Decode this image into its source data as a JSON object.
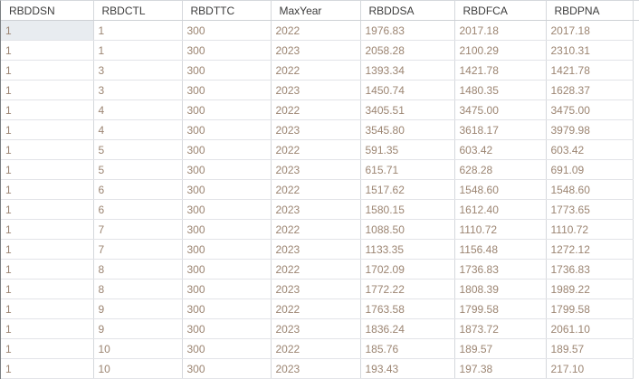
{
  "app": {
    "name": "query-results-grid"
  },
  "colors": {
    "background": "#ffffff",
    "header_text": "#3c3c3c",
    "cell_text": "#9c8572",
    "grid_vertical_line": "#d5d8dc",
    "grid_horizontal_line": "#e2e4e8",
    "header_bottom_border": "#ced1d5",
    "outer_left_border": "#7b7f82",
    "selected_cell_background": "#e8ecf0"
  },
  "table": {
    "columns": [
      "RBDDSN",
      "RBDCTL",
      "RBDTTC",
      "MaxYear",
      "RBDDSA",
      "RBDFCA",
      "RBDPNA"
    ],
    "selected_cell": {
      "row": 0,
      "col": 0
    },
    "rows": [
      [
        "1",
        "1",
        "300",
        "2022",
        "1976.83",
        "2017.18",
        "2017.18"
      ],
      [
        "1",
        "1",
        "300",
        "2023",
        "2058.28",
        "2100.29",
        "2310.31"
      ],
      [
        "1",
        "3",
        "300",
        "2022",
        "1393.34",
        "1421.78",
        "1421.78"
      ],
      [
        "1",
        "3",
        "300",
        "2023",
        "1450.74",
        "1480.35",
        "1628.37"
      ],
      [
        "1",
        "4",
        "300",
        "2022",
        "3405.51",
        "3475.00",
        "3475.00"
      ],
      [
        "1",
        "4",
        "300",
        "2023",
        "3545.80",
        "3618.17",
        "3979.98"
      ],
      [
        "1",
        "5",
        "300",
        "2022",
        "591.35",
        "603.42",
        "603.42"
      ],
      [
        "1",
        "5",
        "300",
        "2023",
        "615.71",
        "628.28",
        "691.09"
      ],
      [
        "1",
        "6",
        "300",
        "2022",
        "1517.62",
        "1548.60",
        "1548.60"
      ],
      [
        "1",
        "6",
        "300",
        "2023",
        "1580.15",
        "1612.40",
        "1773.65"
      ],
      [
        "1",
        "7",
        "300",
        "2022",
        "1088.50",
        "1110.72",
        "1110.72"
      ],
      [
        "1",
        "7",
        "300",
        "2023",
        "1133.35",
        "1156.48",
        "1272.12"
      ],
      [
        "1",
        "8",
        "300",
        "2022",
        "1702.09",
        "1736.83",
        "1736.83"
      ],
      [
        "1",
        "8",
        "300",
        "2023",
        "1772.22",
        "1808.39",
        "1989.22"
      ],
      [
        "1",
        "9",
        "300",
        "2022",
        "1763.58",
        "1799.58",
        "1799.58"
      ],
      [
        "1",
        "9",
        "300",
        "2023",
        "1836.24",
        "1873.72",
        "2061.10"
      ],
      [
        "1",
        "10",
        "300",
        "2022",
        "185.76",
        "189.57",
        "189.57"
      ],
      [
        "1",
        "10",
        "300",
        "2023",
        "193.43",
        "197.38",
        "217.10"
      ]
    ]
  }
}
